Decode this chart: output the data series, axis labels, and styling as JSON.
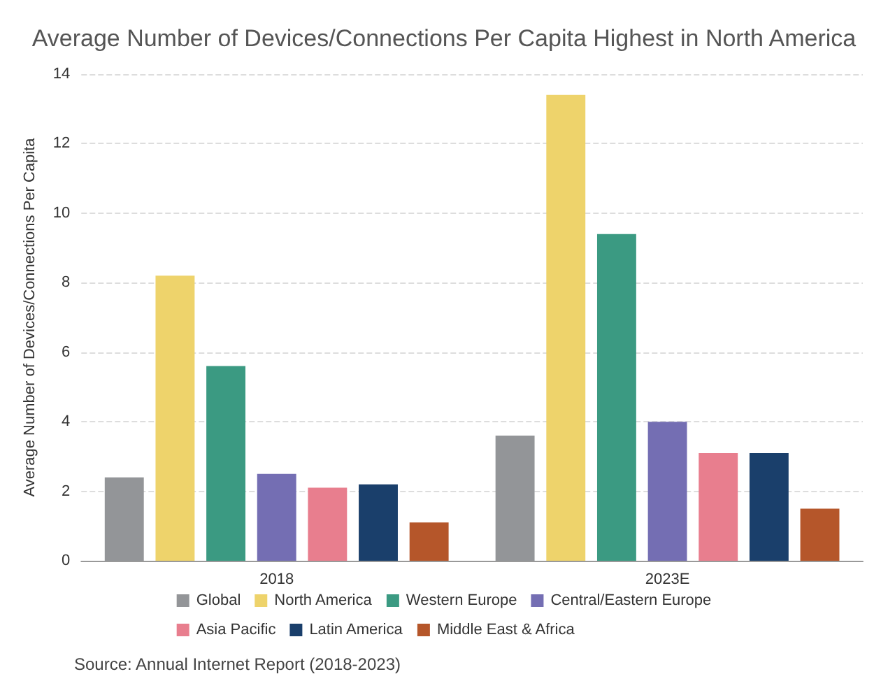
{
  "chart_data": {
    "type": "bar",
    "title": "Average Number of Devices/Connections Per Capita Highest in North America",
    "ylabel": "Average Number of Devices/Connections Per Capita",
    "categories": [
      "2018",
      "2023E"
    ],
    "series": [
      {
        "name": "Global",
        "color": "#939598",
        "values": [
          2.4,
          3.6
        ]
      },
      {
        "name": "North America",
        "color": "#eed36b",
        "values": [
          8.2,
          13.4
        ]
      },
      {
        "name": "Western Europe",
        "color": "#3b9a82",
        "values": [
          5.6,
          9.4
        ]
      },
      {
        "name": "Central/Eastern Europe",
        "color": "#746eb3",
        "values": [
          2.5,
          4.0
        ]
      },
      {
        "name": "Asia Pacific",
        "color": "#e87e8e",
        "values": [
          2.1,
          3.1
        ]
      },
      {
        "name": "Latin America",
        "color": "#1a3f6b",
        "values": [
          2.2,
          3.1
        ]
      },
      {
        "name": "Middle East & Africa",
        "color": "#b5562a",
        "values": [
          1.1,
          1.5
        ]
      }
    ],
    "ylim": [
      0,
      14
    ],
    "yticks": [
      0,
      2,
      4,
      6,
      8,
      10,
      12,
      14
    ],
    "grid": "y",
    "legend": "bottom",
    "annotations": [
      "Source: Annual Internet Report (2018-2023)"
    ]
  }
}
